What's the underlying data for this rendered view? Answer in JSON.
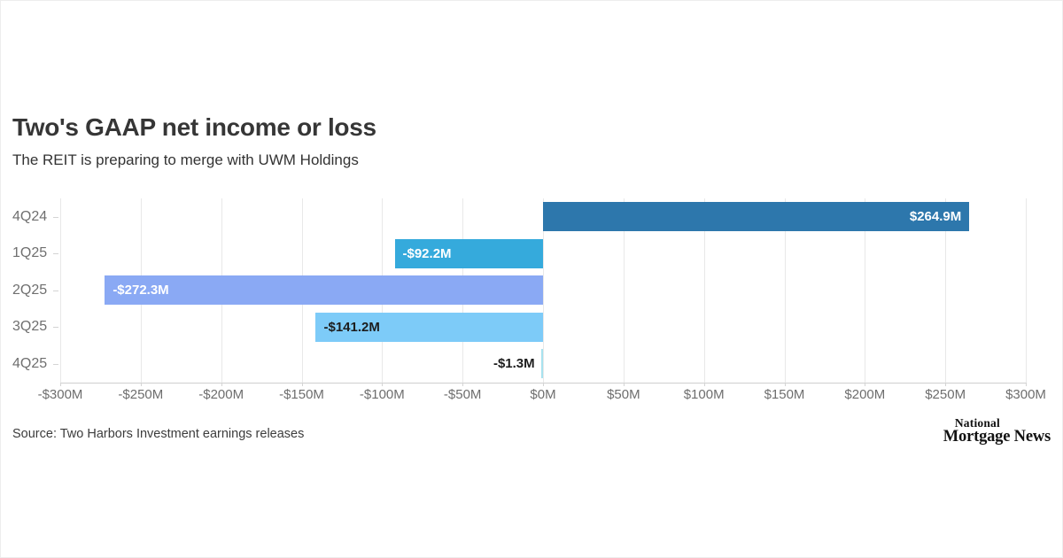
{
  "page": {
    "title": "Two's GAAP net income or loss",
    "subtitle": "The REIT is preparing to merge with UWM Holdings",
    "source": "Source: Two Harbors Investment earnings releases",
    "logo": {
      "line1": "National",
      "line2": "Mortgage News"
    }
  },
  "chart_data": {
    "type": "bar",
    "orientation": "horizontal",
    "title": "Two's GAAP net income or loss",
    "subtitle": "The REIT is preparing to merge with UWM Holdings",
    "xlabel": "",
    "ylabel": "",
    "unit": "$M",
    "grid": true,
    "categories": [
      "4Q24",
      "1Q25",
      "2Q25",
      "3Q25",
      "4Q25"
    ],
    "values": [
      264.9,
      -92.2,
      -272.3,
      -141.2,
      -1.3
    ],
    "bars": [
      {
        "category": "4Q24",
        "value": 264.9,
        "label": "$264.9M",
        "color": "#2d77ac",
        "label_position": "inside-right",
        "label_color": "#ffffff"
      },
      {
        "category": "1Q25",
        "value": -92.2,
        "label": "-$92.2M",
        "color": "#35aadc",
        "label_position": "inside-left",
        "label_color": "#ffffff"
      },
      {
        "category": "2Q25",
        "value": -272.3,
        "label": "-$272.3M",
        "color": "#8aa9f4",
        "label_position": "inside-left",
        "label_color": "#ffffff"
      },
      {
        "category": "3Q25",
        "value": -141.2,
        "label": "-$141.2M",
        "color": "#7dcbf8",
        "label_position": "inside-left",
        "label_color": "#1d1d1d"
      },
      {
        "category": "4Q25",
        "value": -1.3,
        "label": "-$1.3M",
        "color": "#a8e2ef",
        "label_position": "outside-left",
        "label_color": "#1d1d1d"
      }
    ],
    "x_axis": {
      "min": -300,
      "max": 300,
      "step": 50,
      "tick_labels": [
        "-$300M",
        "-$250M",
        "-$200M",
        "-$150M",
        "-$100M",
        "-$50M",
        "$0M",
        "$50M",
        "$100M",
        "$150M",
        "$200M",
        "$250M",
        "$300M"
      ]
    },
    "colors": {
      "grid": "#e8e8e8",
      "axis_line": "#cfcfcf",
      "axis_text": "#6e6e6e",
      "title_text": "#363636"
    }
  }
}
